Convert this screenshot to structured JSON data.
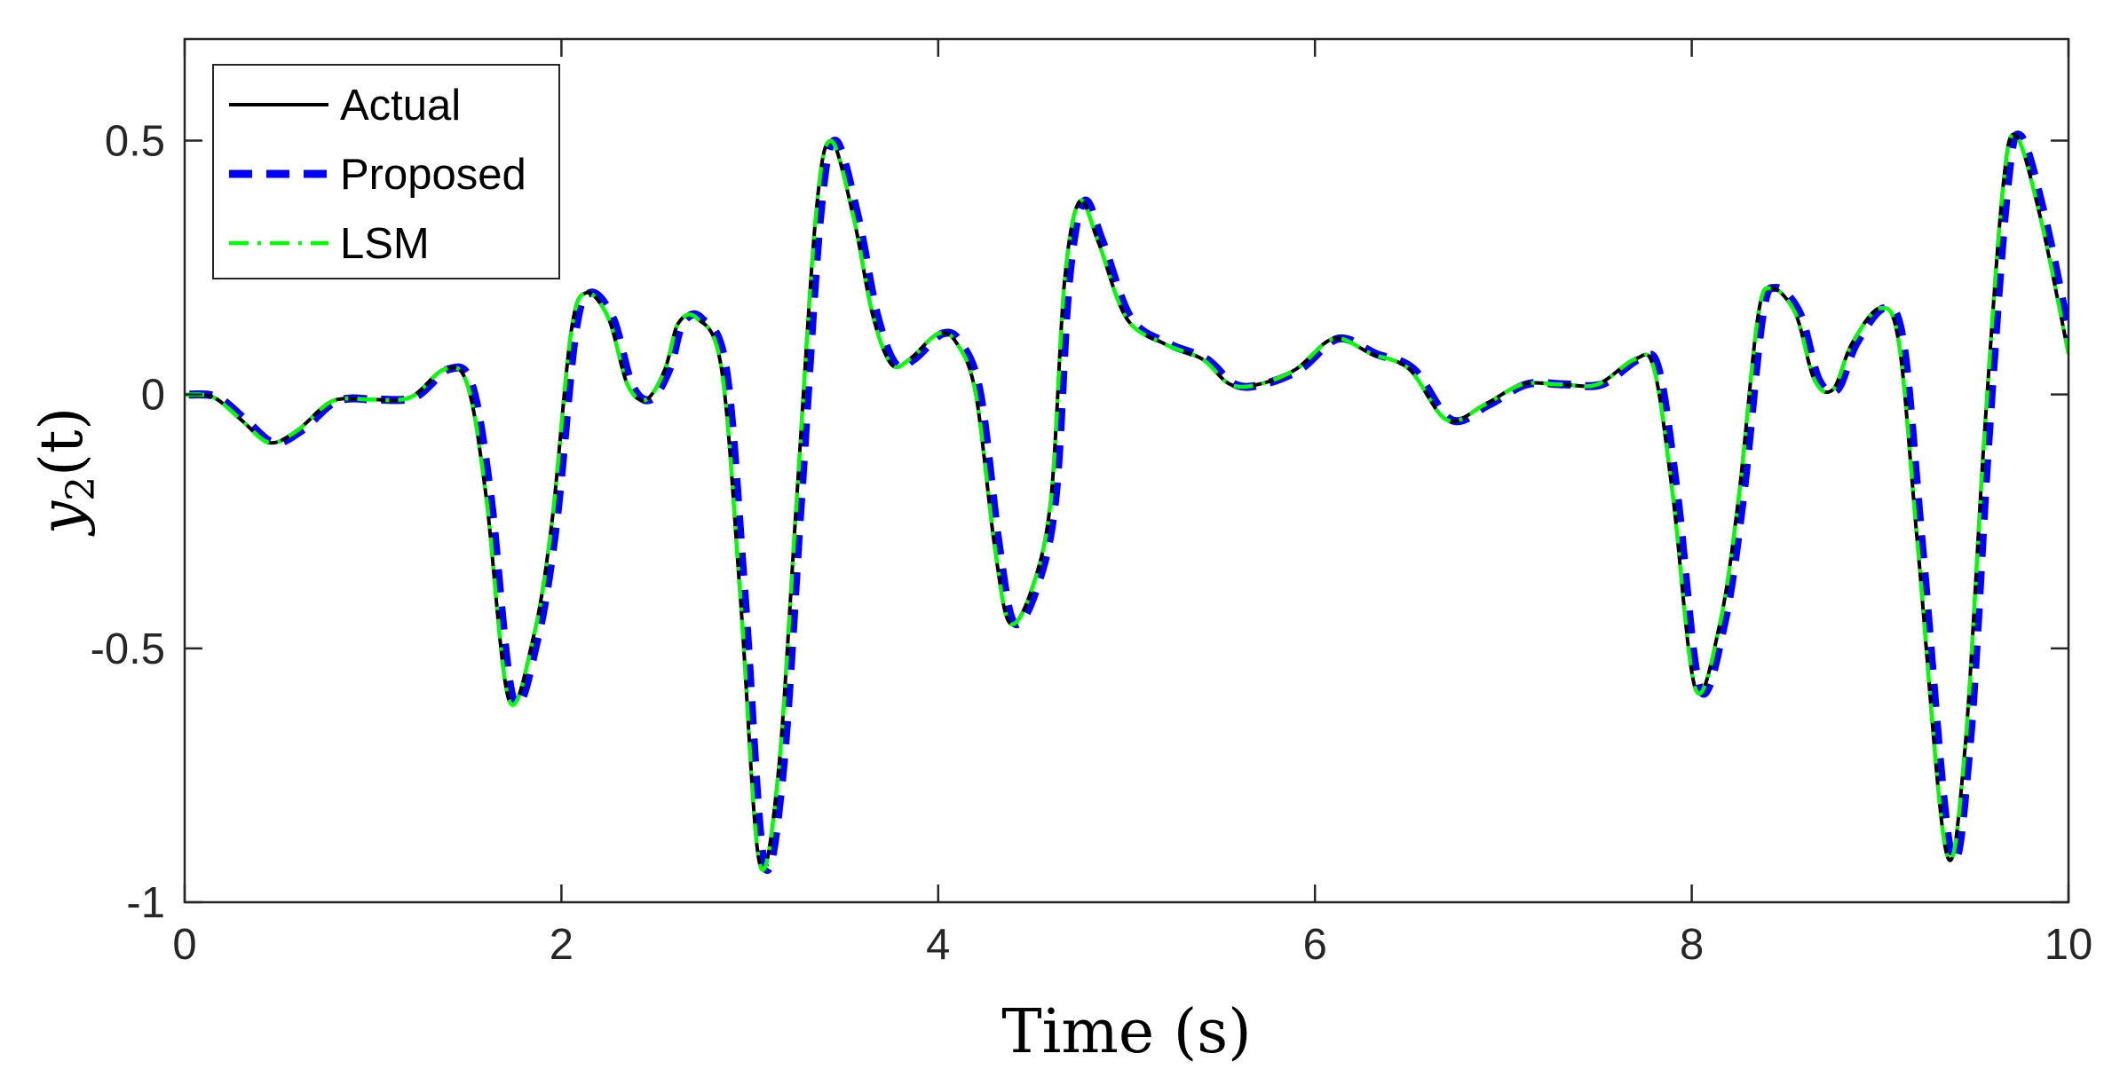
{
  "chart_data": {
    "type": "line",
    "title": "",
    "xlabel": "Time (s)",
    "ylabel": "y2(t)",
    "ylabel_math": {
      "base": "y",
      "subscript": "2",
      "rest": "(t)"
    },
    "xlim": [
      0,
      10
    ],
    "ylim": [
      -1,
      0.7
    ],
    "x_ticks": [
      0,
      2,
      4,
      6,
      8,
      10
    ],
    "x_tick_labels": [
      "0",
      "2",
      "4",
      "6",
      "8",
      "10"
    ],
    "y_ticks": [
      -1,
      -0.5,
      0,
      0.5
    ],
    "y_tick_labels": [
      "-1",
      "-0.5",
      "0",
      "0.5"
    ],
    "grid": false,
    "legend_position": "top-left",
    "x": [
      0,
      0.15,
      0.3,
      0.45,
      0.6,
      0.75,
      0.85,
      1.0,
      1.2,
      1.38,
      1.5,
      1.6,
      1.72,
      1.85,
      1.95,
      2.05,
      2.13,
      2.25,
      2.35,
      2.45,
      2.55,
      2.62,
      2.72,
      2.85,
      2.95,
      3.05,
      3.15,
      3.25,
      3.35,
      3.43,
      3.55,
      3.65,
      3.75,
      3.85,
      4.0,
      4.1,
      4.2,
      4.3,
      4.38,
      4.5,
      4.6,
      4.67,
      4.75,
      4.85,
      5.0,
      5.2,
      5.4,
      5.55,
      5.7,
      5.9,
      6.1,
      6.3,
      6.5,
      6.7,
      6.9,
      7.1,
      7.3,
      7.5,
      7.7,
      7.8,
      7.9,
      8.02,
      8.15,
      8.25,
      8.35,
      8.42,
      8.55,
      8.65,
      8.75,
      8.85,
      9.0,
      9.1,
      9.2,
      9.35,
      9.45,
      9.55,
      9.65,
      9.72,
      9.85,
      10.0
    ],
    "series": [
      {
        "name": "Actual",
        "color": "#000000",
        "style": "solid",
        "values": [
          0,
          -0.005,
          -0.05,
          -0.095,
          -0.07,
          -0.02,
          -0.008,
          -0.01,
          -0.005,
          0.05,
          0.02,
          -0.2,
          -0.6,
          -0.48,
          -0.25,
          0.12,
          0.2,
          0.15,
          0.02,
          -0.01,
          0.05,
          0.14,
          0.15,
          0.05,
          -0.4,
          -0.92,
          -0.75,
          -0.2,
          0.35,
          0.5,
          0.35,
          0.16,
          0.06,
          0.07,
          0.12,
          0.1,
          0.0,
          -0.3,
          -0.45,
          -0.38,
          -0.2,
          0.22,
          0.38,
          0.3,
          0.15,
          0.1,
          0.07,
          0.02,
          0.02,
          0.05,
          0.11,
          0.08,
          0.05,
          -0.05,
          -0.02,
          0.02,
          0.02,
          0.02,
          0.07,
          0.05,
          -0.2,
          -0.58,
          -0.45,
          -0.2,
          0.15,
          0.21,
          0.16,
          0.03,
          0.01,
          0.1,
          0.17,
          0.1,
          -0.3,
          -0.9,
          -0.7,
          -0.1,
          0.4,
          0.51,
          0.35,
          0.08
        ]
      },
      {
        "name": "Proposed",
        "color": "#0000ff",
        "style": "dashed",
        "values": [
          0,
          -0.005,
          -0.05,
          -0.095,
          -0.07,
          -0.02,
          -0.008,
          -0.01,
          -0.005,
          0.05,
          0.02,
          -0.2,
          -0.6,
          -0.48,
          -0.25,
          0.12,
          0.2,
          0.15,
          0.02,
          -0.01,
          0.05,
          0.14,
          0.15,
          0.05,
          -0.4,
          -0.92,
          -0.75,
          -0.2,
          0.35,
          0.5,
          0.35,
          0.16,
          0.06,
          0.07,
          0.12,
          0.1,
          0.0,
          -0.3,
          -0.45,
          -0.38,
          -0.2,
          0.22,
          0.38,
          0.3,
          0.15,
          0.1,
          0.07,
          0.02,
          0.02,
          0.05,
          0.11,
          0.08,
          0.05,
          -0.05,
          -0.02,
          0.02,
          0.02,
          0.02,
          0.07,
          0.05,
          -0.2,
          -0.58,
          -0.45,
          -0.2,
          0.15,
          0.21,
          0.16,
          0.03,
          0.01,
          0.1,
          0.17,
          0.1,
          -0.3,
          -0.9,
          -0.7,
          -0.1,
          0.4,
          0.51,
          0.35,
          0.08
        ]
      },
      {
        "name": "LSM",
        "color": "#00ff00",
        "style": "dashdot",
        "values": [
          0,
          -0.005,
          -0.05,
          -0.095,
          -0.07,
          -0.02,
          -0.008,
          -0.01,
          -0.005,
          0.05,
          0.02,
          -0.2,
          -0.6,
          -0.48,
          -0.25,
          0.12,
          0.2,
          0.15,
          0.02,
          -0.01,
          0.05,
          0.14,
          0.15,
          0.05,
          -0.4,
          -0.92,
          -0.75,
          -0.2,
          0.35,
          0.5,
          0.35,
          0.16,
          0.06,
          0.07,
          0.12,
          0.1,
          0.0,
          -0.3,
          -0.45,
          -0.38,
          -0.2,
          0.22,
          0.38,
          0.3,
          0.15,
          0.1,
          0.07,
          0.02,
          0.02,
          0.05,
          0.11,
          0.08,
          0.05,
          -0.05,
          -0.02,
          0.02,
          0.02,
          0.02,
          0.07,
          0.05,
          -0.2,
          -0.58,
          -0.45,
          -0.2,
          0.15,
          0.21,
          0.16,
          0.03,
          0.01,
          0.1,
          0.17,
          0.1,
          -0.3,
          -0.9,
          -0.7,
          -0.1,
          0.4,
          0.51,
          0.35,
          0.08
        ]
      }
    ]
  }
}
